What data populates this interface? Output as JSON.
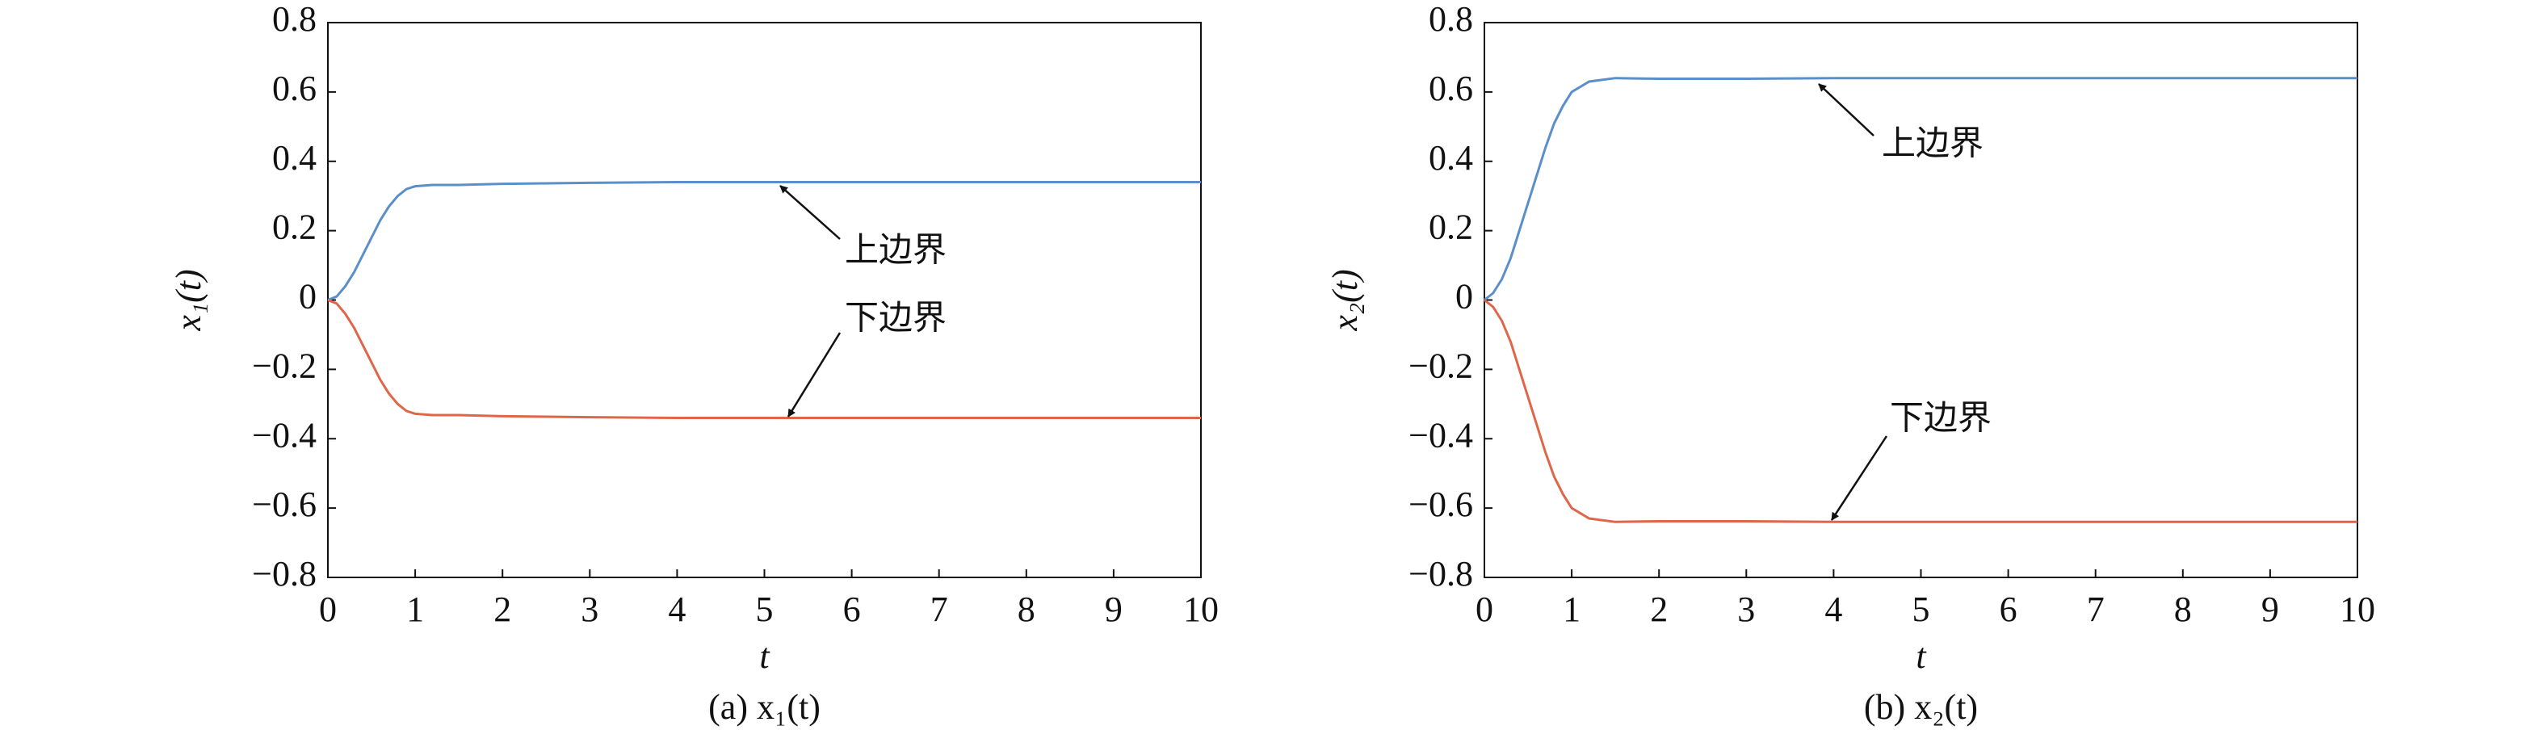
{
  "chart_data": [
    {
      "type": "line",
      "caption": "(a) x₁(t)",
      "xlabel": "t",
      "ylabel": "x₁(t)",
      "x": [
        0,
        0.1,
        0.2,
        0.3,
        0.4,
        0.5,
        0.6,
        0.7,
        0.8,
        0.9,
        1,
        1.2,
        1.5,
        2,
        3,
        4,
        5,
        6,
        7,
        8,
        9,
        10
      ],
      "series": [
        {
          "color": "#5b8fc9",
          "values": [
            0,
            0.01,
            0.04,
            0.08,
            0.13,
            0.18,
            0.23,
            0.27,
            0.3,
            0.32,
            0.328,
            0.332,
            0.332,
            0.335,
            0.338,
            0.34,
            0.34,
            0.34,
            0.34,
            0.34,
            0.34,
            0.34
          ]
        },
        {
          "color": "#e0664a",
          "values": [
            0,
            -0.01,
            -0.04,
            -0.08,
            -0.13,
            -0.18,
            -0.23,
            -0.27,
            -0.3,
            -0.32,
            -0.328,
            -0.332,
            -0.332,
            -0.335,
            -0.338,
            -0.34,
            -0.34,
            -0.34,
            -0.34,
            -0.34,
            -0.34,
            -0.34
          ]
        }
      ],
      "annotations": [
        {
          "text": "上边界"
        },
        {
          "text": "下边界"
        }
      ],
      "xlim": [
        0,
        10
      ],
      "xticks": [
        0,
        1,
        2,
        3,
        4,
        5,
        6,
        7,
        8,
        9,
        10
      ],
      "ylim": [
        -0.8,
        0.8
      ],
      "yticks": [
        {
          "value": -0.8,
          "label": "−0.8"
        },
        {
          "value": -0.6,
          "label": "−0.6"
        },
        {
          "value": -0.4,
          "label": "−0.4"
        },
        {
          "value": -0.2,
          "label": "−0.2"
        },
        0,
        0.2,
        0.4,
        0.6,
        0.8
      ],
      "grid": false
    },
    {
      "type": "line",
      "caption": "(b) x₂(t)",
      "xlabel": "t",
      "ylabel": "x₂(t)",
      "x": [
        0,
        0.1,
        0.2,
        0.3,
        0.4,
        0.5,
        0.6,
        0.7,
        0.8,
        0.9,
        1,
        1.2,
        1.5,
        2,
        3,
        4,
        5,
        6,
        7,
        8,
        9,
        10
      ],
      "series": [
        {
          "color": "#5b8fc9",
          "values": [
            0,
            0.02,
            0.06,
            0.12,
            0.2,
            0.28,
            0.36,
            0.44,
            0.51,
            0.56,
            0.6,
            0.63,
            0.64,
            0.638,
            0.638,
            0.64,
            0.64,
            0.64,
            0.64,
            0.64,
            0.64,
            0.64
          ]
        },
        {
          "color": "#e0664a",
          "values": [
            0,
            -0.02,
            -0.06,
            -0.12,
            -0.2,
            -0.28,
            -0.36,
            -0.44,
            -0.51,
            -0.56,
            -0.6,
            -0.63,
            -0.64,
            -0.638,
            -0.638,
            -0.64,
            -0.64,
            -0.64,
            -0.64,
            -0.64,
            -0.64,
            -0.64
          ]
        }
      ],
      "annotations": [
        {
          "text": "上边界"
        },
        {
          "text": "下边界"
        }
      ],
      "xlim": [
        0,
        10
      ],
      "xticks": [
        0,
        1,
        2,
        3,
        4,
        5,
        6,
        7,
        8,
        9,
        10
      ],
      "ylim": [
        -0.8,
        0.8
      ],
      "yticks": [
        {
          "value": -0.8,
          "label": "−0.8"
        },
        {
          "value": -0.6,
          "label": "−0.6"
        },
        {
          "value": -0.4,
          "label": "−0.4"
        },
        {
          "value": -0.2,
          "label": "−0.2"
        },
        0,
        0.2,
        0.4,
        0.6,
        0.8
      ],
      "grid": false
    }
  ]
}
